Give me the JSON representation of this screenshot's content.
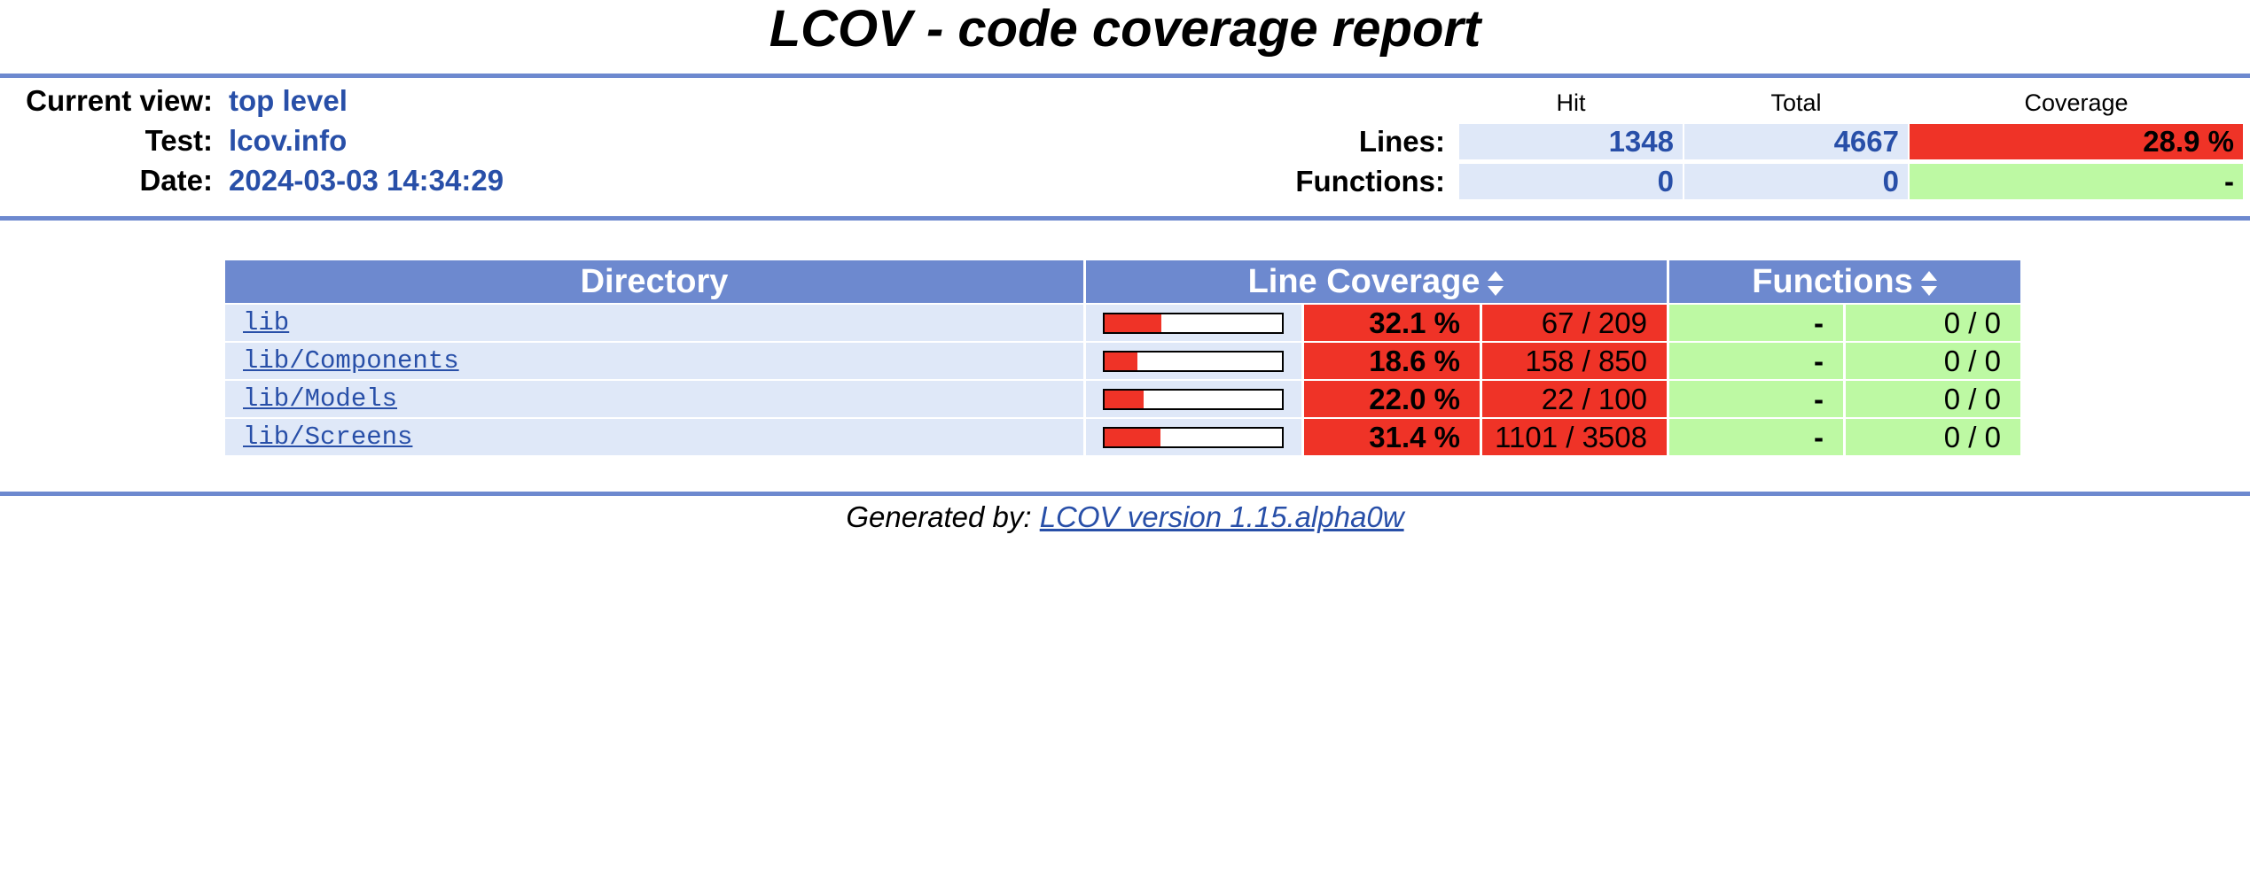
{
  "page": {
    "title": "LCOV - code coverage report"
  },
  "header": {
    "current_view_label": "Current view:",
    "current_view": "top level",
    "test_label": "Test:",
    "test": "lcov.info",
    "date_label": "Date:",
    "date": "2024-03-03 14:34:29"
  },
  "summary": {
    "col_hit": "Hit",
    "col_total": "Total",
    "col_coverage": "Coverage",
    "lines_label": "Lines:",
    "lines_hit": "1348",
    "lines_total": "4667",
    "lines_coverage": "28.9 %",
    "functions_label": "Functions:",
    "functions_hit": "0",
    "functions_total": "0",
    "functions_coverage": "-"
  },
  "table": {
    "headers": {
      "directory": "Directory",
      "line_coverage": "Line Coverage",
      "functions": "Functions"
    },
    "rows": [
      {
        "dir": "lib",
        "line_pct": "32.1 %",
        "line_fraction": 0.321,
        "line_counts": "67 / 209",
        "func_pct": "-",
        "func_counts": "0 / 0"
      },
      {
        "dir": "lib/Components",
        "line_pct": "18.6 %",
        "line_fraction": 0.186,
        "line_counts": "158 / 850",
        "func_pct": "-",
        "func_counts": "0 / 0"
      },
      {
        "dir": "lib/Models",
        "line_pct": "22.0 %",
        "line_fraction": 0.22,
        "line_counts": "22 / 100",
        "func_pct": "-",
        "func_counts": "0 / 0"
      },
      {
        "dir": "lib/Screens",
        "line_pct": "31.4 %",
        "line_fraction": 0.314,
        "line_counts": "1101 / 3508",
        "func_pct": "-",
        "func_counts": "0 / 0"
      }
    ]
  },
  "footer": {
    "prefix": "Generated by:",
    "link": "LCOV version 1.15.alpha0w"
  },
  "colors": {
    "rule": "#6d89cf",
    "low": "#ef3327",
    "hi": "#bdf9a3",
    "cell": "#dfe8f8",
    "link": "#284fa8"
  }
}
